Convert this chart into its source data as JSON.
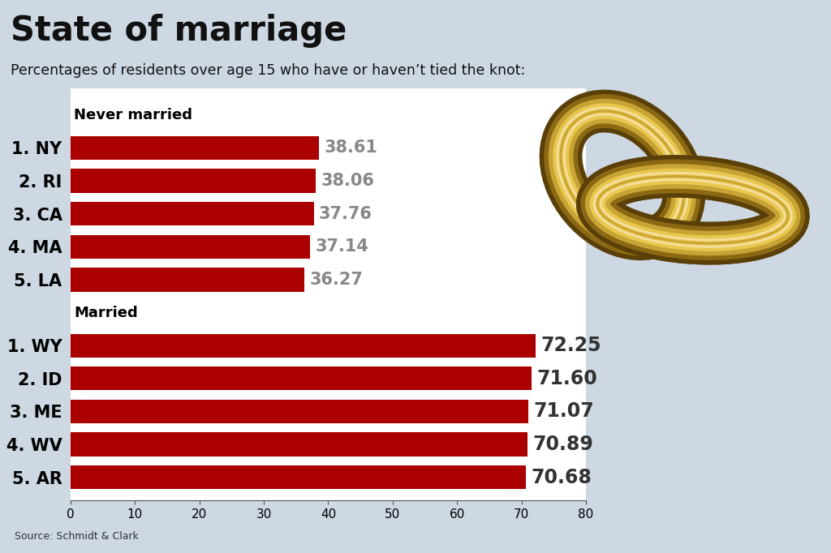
{
  "title": "State of marriage",
  "subtitle": "Percentages of residents over age 15 who have or haven’t tied the knot:",
  "source": "Source: Schmidt & Clark",
  "bg_color": "#cdd8e3",
  "chart_bg": "#ffffff",
  "bar_color": "#aa0000",
  "value_color": "#888888",
  "label_color": "#000000",
  "never_married": {
    "header": "Never married",
    "labels": [
      "1. NY",
      "2. RI",
      "3. CA",
      "4. MA",
      "5. LA"
    ],
    "values": [
      38.61,
      38.06,
      37.76,
      37.14,
      36.27
    ]
  },
  "married": {
    "header": "Married",
    "labels": [
      "1. WY",
      "2. ID",
      "3. ME",
      "4. WV",
      "5. AR"
    ],
    "values": [
      72.25,
      71.6,
      71.07,
      70.89,
      70.68
    ]
  },
  "xlim": [
    0,
    80
  ],
  "xticks": [
    0,
    10,
    20,
    30,
    40,
    50,
    60,
    70,
    80
  ]
}
